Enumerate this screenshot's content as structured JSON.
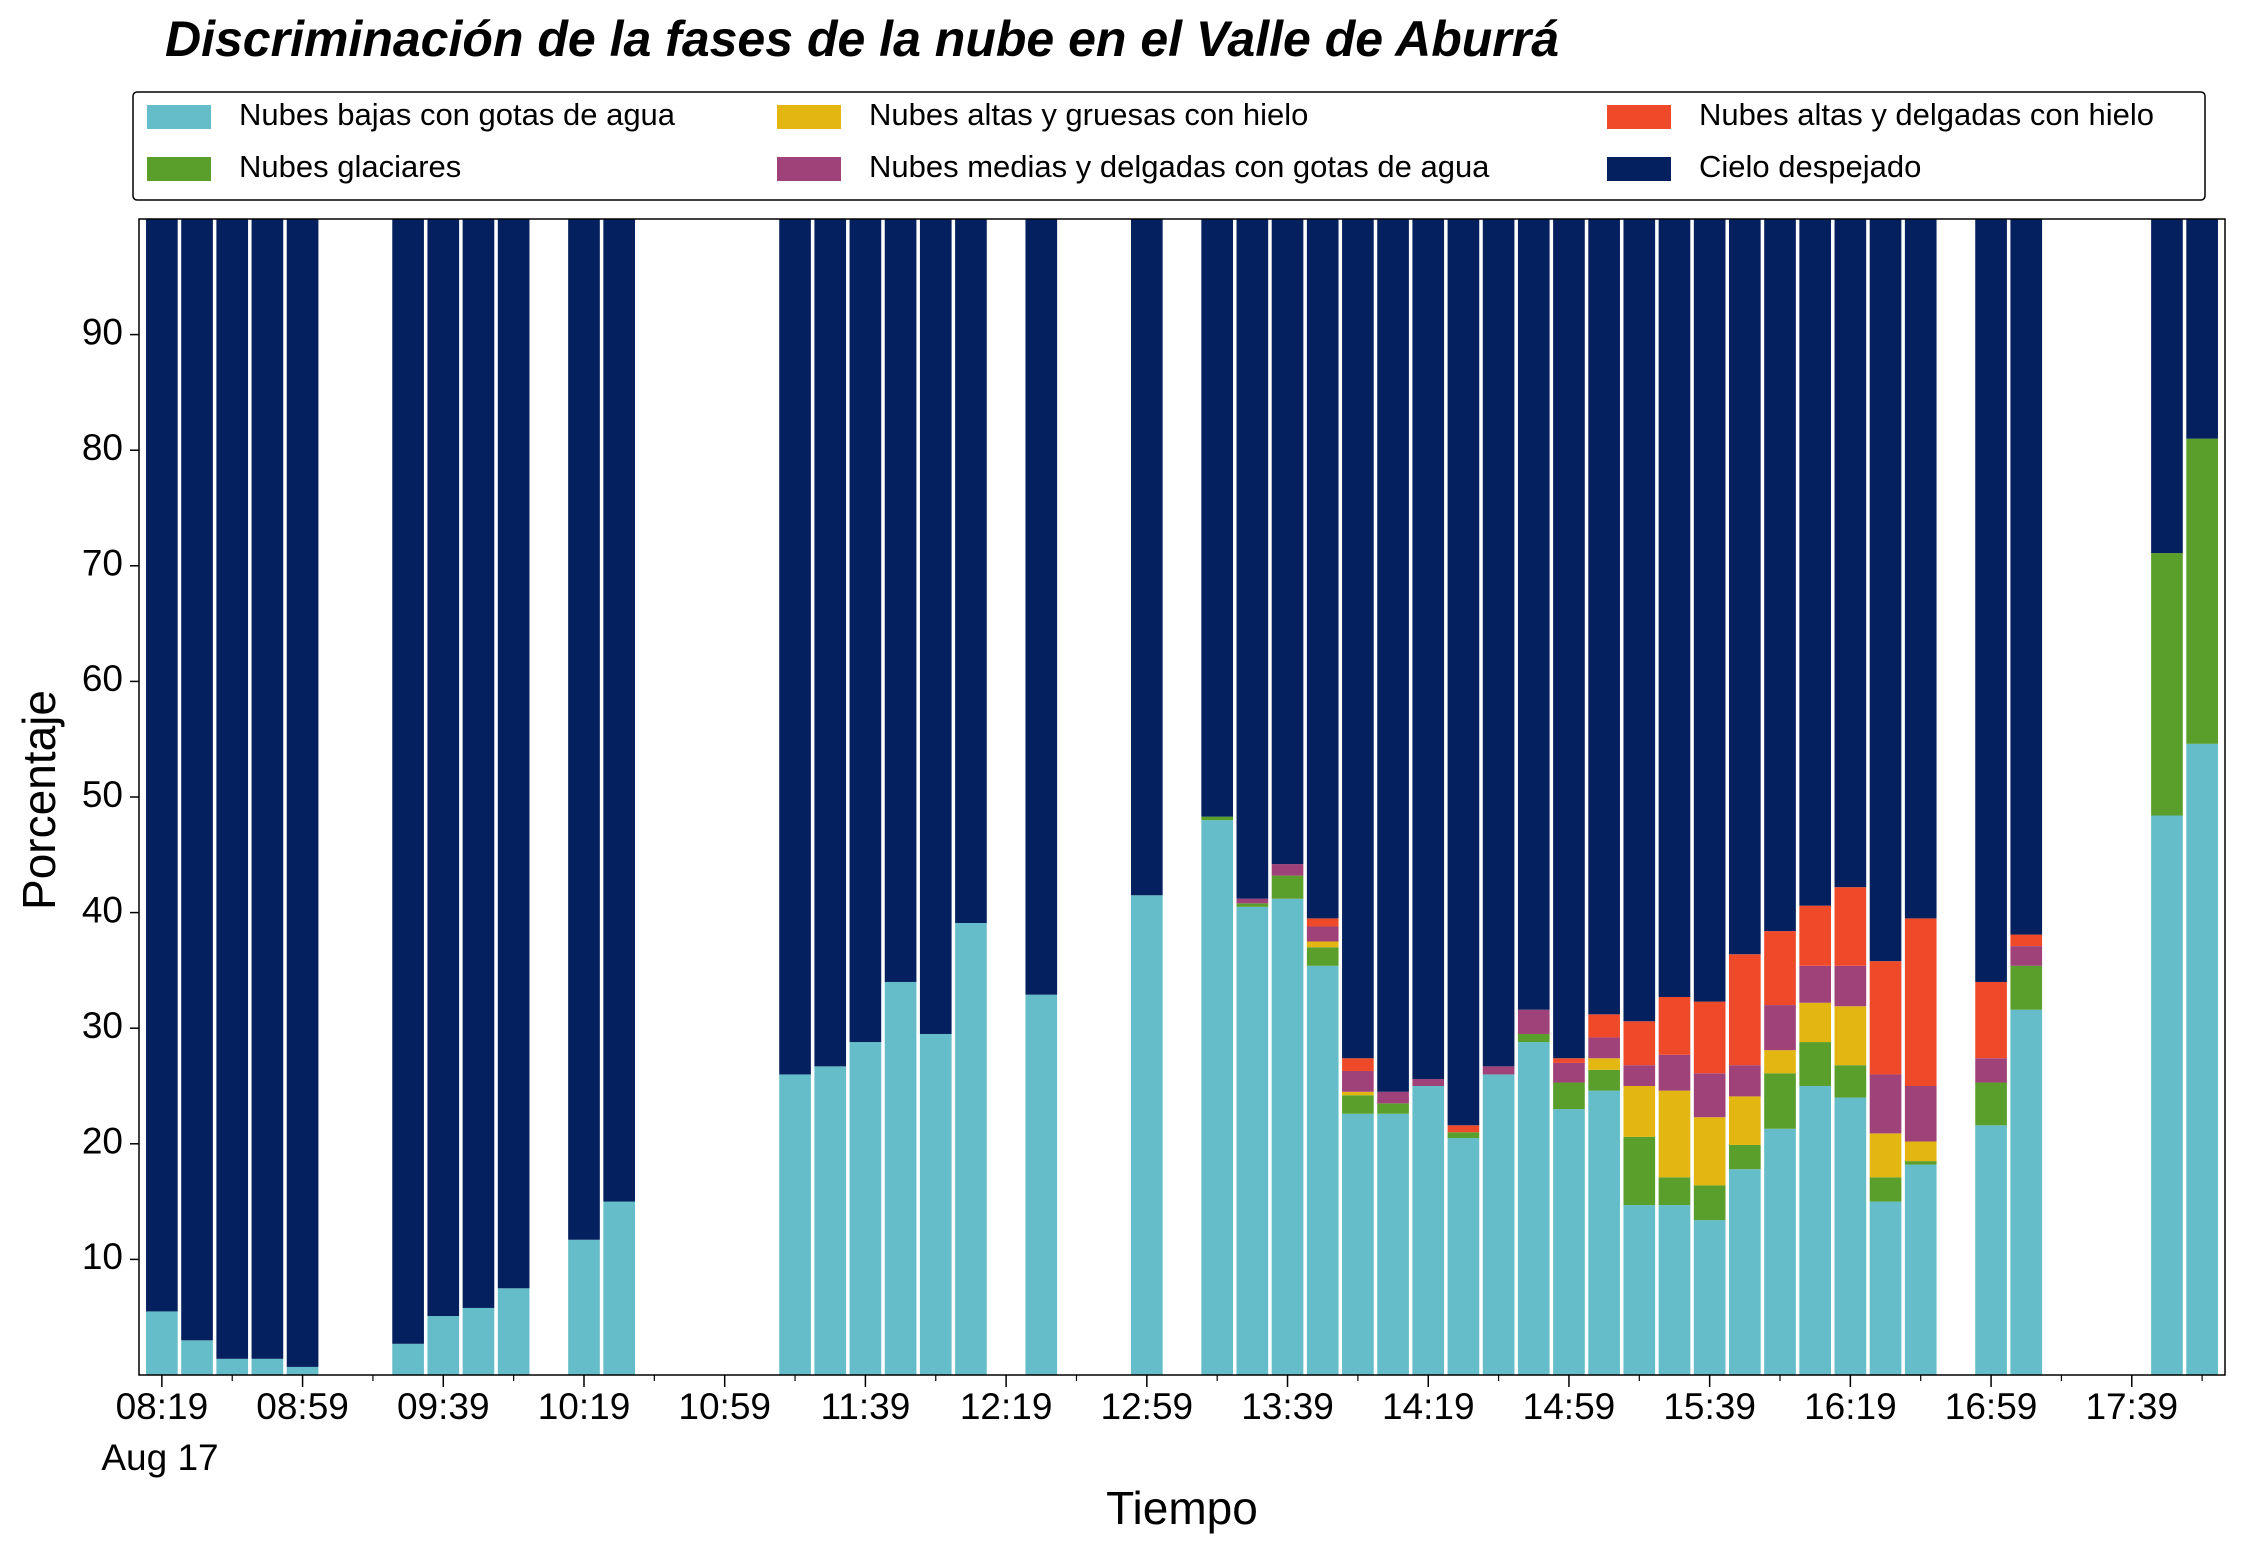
{
  "chart_data": {
    "type": "stacked_bar",
    "title": "Discriminación de la fases de la nube en el Valle de Aburrá",
    "x_label": "Tiempo",
    "y_label": "Porcentaje",
    "date_label": "Aug 17",
    "legend": "top",
    "ylim": [
      0,
      100
    ],
    "yticks": [
      10,
      20,
      30,
      40,
      50,
      60,
      70,
      80,
      90
    ],
    "categories": [
      "08:19",
      null,
      null,
      null,
      "08:59",
      null,
      null,
      null,
      "09:39",
      null,
      null,
      null,
      "10:19",
      null,
      null,
      null,
      "10:59",
      null,
      null,
      null,
      "11:39",
      null,
      null,
      null,
      "12:19",
      null,
      null,
      null,
      "12:59",
      null,
      null,
      null,
      "13:39",
      null,
      null,
      null,
      "14:19",
      null,
      null,
      null,
      "14:59",
      null,
      null,
      null,
      "15:39",
      null,
      null,
      null,
      "16:19",
      null,
      null,
      null,
      "16:59",
      null,
      null,
      null,
      "17:39",
      null,
      null
    ],
    "series": [
      {
        "name": "Nubes bajas con gotas de agua",
        "color": "#64bdc8",
        "values": [
          5.5,
          3.0,
          1.4,
          1.4,
          0.7,
          null,
          null,
          2.7,
          5.1,
          5.8,
          7.5,
          null,
          11.7,
          15.0,
          null,
          null,
          null,
          null,
          26.0,
          26.7,
          28.8,
          34.0,
          29.5,
          39.1,
          null,
          32.9,
          null,
          null,
          41.5,
          null,
          48.0,
          40.5,
          41.2,
          35.4,
          22.6,
          22.6,
          25.0,
          20.5,
          26.0,
          28.8,
          23.0,
          24.6,
          14.7,
          14.7,
          13.4,
          17.8,
          21.3,
          25.0,
          24.0,
          15.0,
          18.2,
          null,
          21.6,
          31.6,
          null,
          null,
          null,
          48.4,
          54.6
        ]
      },
      {
        "name": "Nubes glaciares",
        "color": "#5a9e2c",
        "values": [
          0,
          0,
          0,
          0,
          0,
          null,
          null,
          0,
          0,
          0,
          0,
          null,
          0,
          0,
          null,
          null,
          null,
          null,
          0,
          0,
          0,
          0,
          0,
          0,
          null,
          0,
          null,
          null,
          0,
          null,
          0.3,
          0.3,
          2.0,
          1.6,
          1.6,
          0.9,
          0,
          0.5,
          0,
          0.7,
          2.3,
          1.8,
          5.9,
          2.4,
          3.0,
          2.1,
          4.8,
          3.8,
          2.8,
          2.1,
          0.3,
          null,
          3.7,
          3.8,
          null,
          null,
          null,
          22.7,
          26.4
        ]
      },
      {
        "name": "Nubes altas y gruesas con hielo",
        "color": "#e3b612",
        "values": [
          0,
          0,
          0,
          0,
          0,
          null,
          null,
          0,
          0,
          0,
          0,
          null,
          0,
          0,
          null,
          null,
          null,
          null,
          0,
          0,
          0,
          0,
          0,
          0,
          null,
          0,
          null,
          null,
          0,
          null,
          0,
          0,
          0,
          0.5,
          0.3,
          0,
          0,
          0,
          0,
          0,
          0,
          1.0,
          4.4,
          7.5,
          5.9,
          4.2,
          2.0,
          3.4,
          5.1,
          3.8,
          1.7,
          null,
          0,
          0,
          null,
          null,
          null,
          0,
          0
        ]
      },
      {
        "name": "Nubes medias y delgadas con gotas de agua",
        "color": "#a0427a",
        "values": [
          0,
          0,
          0,
          0,
          0,
          null,
          null,
          0,
          0,
          0,
          0,
          null,
          0,
          0,
          null,
          null,
          null,
          null,
          0,
          0,
          0,
          0,
          0,
          0,
          null,
          0,
          null,
          null,
          0,
          null,
          0,
          0.4,
          1.0,
          1.3,
          1.8,
          1.0,
          0.6,
          0,
          0.7,
          2.1,
          1.7,
          1.8,
          1.8,
          3.1,
          3.8,
          2.7,
          3.9,
          3.2,
          3.5,
          5.1,
          4.8,
          null,
          2.1,
          1.7,
          null,
          null,
          null,
          0,
          0
        ]
      },
      {
        "name": "Nubes altas y delgadas con hielo",
        "color": "#ee4a2a",
        "values": [
          0,
          0,
          0,
          0,
          0,
          null,
          null,
          0,
          0,
          0,
          0,
          null,
          0,
          0,
          null,
          null,
          null,
          null,
          0,
          0,
          0,
          0,
          0,
          0,
          null,
          0,
          null,
          null,
          0,
          null,
          0,
          0,
          0,
          0.7,
          1.1,
          0,
          0,
          0.6,
          0,
          0,
          0.4,
          2.0,
          3.8,
          5.0,
          6.2,
          9.6,
          6.4,
          5.2,
          6.8,
          9.8,
          14.5,
          null,
          6.6,
          1.0,
          null,
          null,
          null,
          0,
          0
        ]
      },
      {
        "name": "Cielo despejado",
        "color": "#04205e",
        "values": [
          94.5,
          97.0,
          98.6,
          98.6,
          99.3,
          null,
          null,
          97.3,
          94.9,
          94.2,
          92.5,
          null,
          88.3,
          85.0,
          null,
          null,
          null,
          null,
          74.0,
          73.3,
          71.2,
          66.0,
          70.5,
          60.9,
          null,
          67.1,
          null,
          null,
          58.5,
          null,
          51.7,
          58.8,
          55.8,
          60.5,
          72.6,
          75.5,
          74.4,
          78.4,
          73.3,
          68.4,
          72.6,
          68.8,
          69.4,
          67.3,
          67.7,
          63.6,
          61.6,
          59.4,
          57.8,
          64.2,
          60.5,
          null,
          66.0,
          61.9,
          null,
          null,
          null,
          28.9,
          19.0
        ]
      }
    ]
  }
}
